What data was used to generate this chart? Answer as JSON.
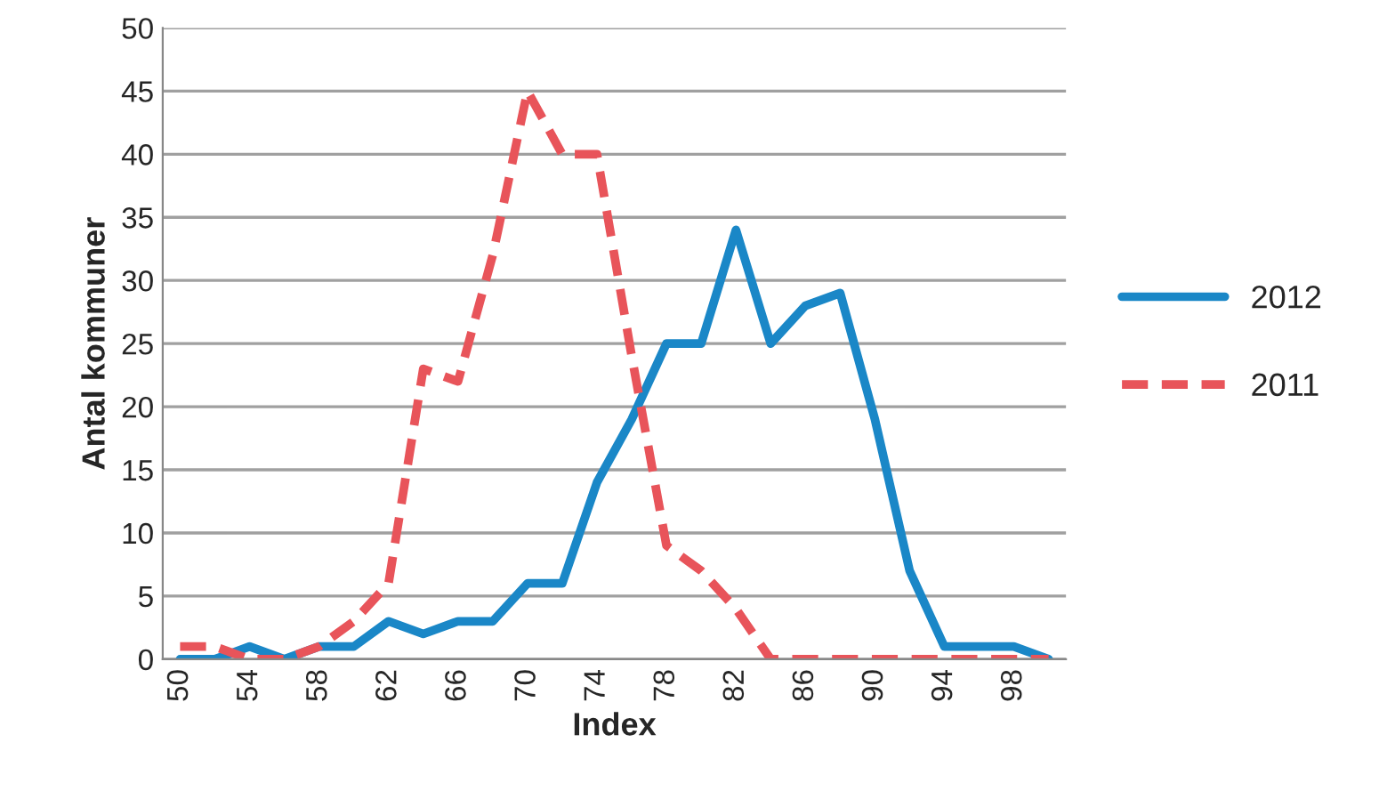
{
  "chart_data": {
    "type": "line",
    "xlabel": "Index",
    "ylabel": "Antal kommuner",
    "categories": [
      "50",
      null,
      "54",
      null,
      "58",
      null,
      "62",
      null,
      "66",
      null,
      "70",
      null,
      "74",
      null,
      "78",
      null,
      "82",
      null,
      "86",
      null,
      "90",
      null,
      "94",
      null,
      "98",
      null
    ],
    "series": [
      {
        "name": "2012",
        "color": "#1a87c7",
        "line_style": "solid",
        "values": [
          0,
          0,
          1,
          0,
          1,
          1,
          3,
          2,
          3,
          3,
          6,
          6,
          14,
          19,
          25,
          25,
          34,
          25,
          28,
          29,
          19,
          7,
          1,
          1,
          1,
          0
        ]
      },
      {
        "name": "2011",
        "color": "#e8545a",
        "line_style": "dashed",
        "values": [
          1,
          1,
          0,
          0,
          1,
          3,
          6,
          23,
          22,
          32,
          45,
          40,
          40,
          24,
          9,
          7,
          4,
          0,
          0,
          0,
          0,
          0,
          0,
          0,
          0,
          0
        ]
      }
    ],
    "ylim": [
      0,
      50
    ],
    "yticks": [
      0,
      5,
      10,
      15,
      20,
      25,
      30,
      35,
      40,
      45,
      50
    ],
    "grid": "y",
    "legend": "right",
    "marker": "none"
  }
}
